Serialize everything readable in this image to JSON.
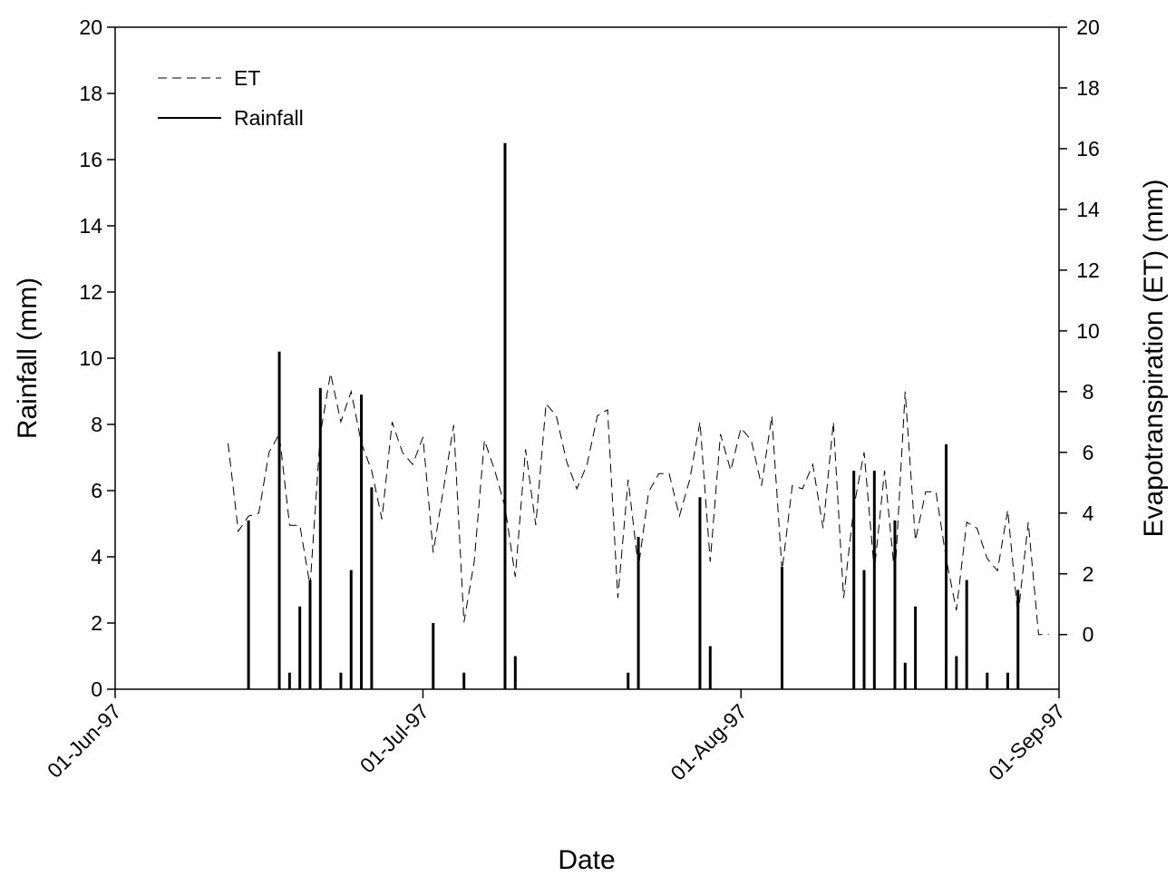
{
  "chart_data": {
    "type": "combo",
    "x_label": "Date",
    "y_label": "Rainfall (mm)",
    "y2_label": "Evapotranspiration (ET) (mm)",
    "xlim": [
      "1997-06-01",
      "1997-09-01"
    ],
    "xticks": [
      {
        "value": "1997-06-01",
        "label": "01-Jun-97"
      },
      {
        "value": "1997-07-01",
        "label": "01-Jul-97"
      },
      {
        "value": "1997-08-01",
        "label": "01-Aug-97"
      },
      {
        "value": "1997-09-01",
        "label": "01-Sep-97"
      }
    ],
    "ylim": [
      0,
      20
    ],
    "yticks": [
      0,
      2,
      4,
      6,
      8,
      10,
      12,
      14,
      16,
      18,
      20
    ],
    "y2lim": [
      -1.8,
      20
    ],
    "y2ticks": [
      0,
      2,
      4,
      6,
      8,
      10,
      12,
      14,
      16,
      18,
      20
    ],
    "legend": "upper left",
    "series": [
      {
        "name": "ET",
        "type": "line",
        "axis": "y2",
        "color": "#000000",
        "line_style": "dashed",
        "x": [
          "1997-06-12",
          "1997-06-13",
          "1997-06-14",
          "1997-06-15",
          "1997-06-16",
          "1997-06-17",
          "1997-06-18",
          "1997-06-19",
          "1997-06-20",
          "1997-06-21",
          "1997-06-22",
          "1997-06-23",
          "1997-06-24",
          "1997-06-25",
          "1997-06-26",
          "1997-06-27",
          "1997-06-28",
          "1997-06-29",
          "1997-06-30",
          "1997-07-01",
          "1997-07-02",
          "1997-07-03",
          "1997-07-04",
          "1997-07-05",
          "1997-07-06",
          "1997-07-07",
          "1997-07-08",
          "1997-07-09",
          "1997-07-10",
          "1997-07-11",
          "1997-07-12",
          "1997-07-13",
          "1997-07-14",
          "1997-07-15",
          "1997-07-16",
          "1997-07-17",
          "1997-07-18",
          "1997-07-19",
          "1997-07-20",
          "1997-07-21",
          "1997-07-22",
          "1997-07-23",
          "1997-07-24",
          "1997-07-25",
          "1997-07-26",
          "1997-07-27",
          "1997-07-28",
          "1997-07-29",
          "1997-07-30",
          "1997-07-31",
          "1997-08-01",
          "1997-08-02",
          "1997-08-03",
          "1997-08-04",
          "1997-08-05",
          "1997-08-06",
          "1997-08-07",
          "1997-08-08",
          "1997-08-09",
          "1997-08-10",
          "1997-08-11",
          "1997-08-12",
          "1997-08-13",
          "1997-08-14",
          "1997-08-15",
          "1997-08-16",
          "1997-08-17",
          "1997-08-18",
          "1997-08-19",
          "1997-08-20",
          "1997-08-21",
          "1997-08-22",
          "1997-08-23",
          "1997-08-24",
          "1997-08-25",
          "1997-08-26",
          "1997-08-27",
          "1997-08-28",
          "1997-08-29",
          "1997-08-30",
          "1997-08-31"
        ],
        "values": [
          6.3,
          3.4,
          3.9,
          4.0,
          6.0,
          6.6,
          3.6,
          3.6,
          1.6,
          6.6,
          8.6,
          7.0,
          8.0,
          6.3,
          5.4,
          3.8,
          7.0,
          6.0,
          5.6,
          6.5,
          2.7,
          4.8,
          6.9,
          0.4,
          2.4,
          6.4,
          5.4,
          4.2,
          1.9,
          6.1,
          3.6,
          7.6,
          7.2,
          5.7,
          4.8,
          5.6,
          7.2,
          7.4,
          1.2,
          5.1,
          2.2,
          4.7,
          5.3,
          5.3,
          3.9,
          5.1,
          7.0,
          2.4,
          6.6,
          5.4,
          6.8,
          6.4,
          4.9,
          7.2,
          2.1,
          4.9,
          4.8,
          5.6,
          3.5,
          7.0,
          1.2,
          4.2,
          6.0,
          2.1,
          5.4,
          1.9,
          8.0,
          3.1,
          4.7,
          4.7,
          2.5,
          0.8,
          3.7,
          3.5,
          2.5,
          2.1,
          4.1,
          0.6,
          3.7,
          0,
          0
        ]
      },
      {
        "name": "Rainfall",
        "type": "bar",
        "axis": "y",
        "color": "#000000",
        "line_style": "solid",
        "x": [
          "1997-06-14",
          "1997-06-17",
          "1997-06-18",
          "1997-06-19",
          "1997-06-20",
          "1997-06-21",
          "1997-06-23",
          "1997-06-24",
          "1997-06-25",
          "1997-06-26",
          "1997-07-02",
          "1997-07-05",
          "1997-07-09",
          "1997-07-10",
          "1997-07-21",
          "1997-07-22",
          "1997-07-28",
          "1997-07-29",
          "1997-08-05",
          "1997-08-12",
          "1997-08-13",
          "1997-08-14",
          "1997-08-16",
          "1997-08-17",
          "1997-08-18",
          "1997-08-21",
          "1997-08-22",
          "1997-08-23",
          "1997-08-25",
          "1997-08-27",
          "1997-08-28"
        ],
        "values": [
          5.1,
          10.2,
          0.5,
          2.5,
          3.3,
          9.1,
          0.5,
          3.6,
          8.9,
          6.1,
          2.0,
          0.5,
          16.5,
          1.0,
          0.5,
          4.6,
          5.8,
          1.3,
          3.7,
          6.6,
          3.6,
          6.6,
          5.1,
          0.8,
          2.5,
          7.4,
          1.0,
          3.3,
          0.5,
          0.5,
          3.0
        ]
      }
    ]
  }
}
